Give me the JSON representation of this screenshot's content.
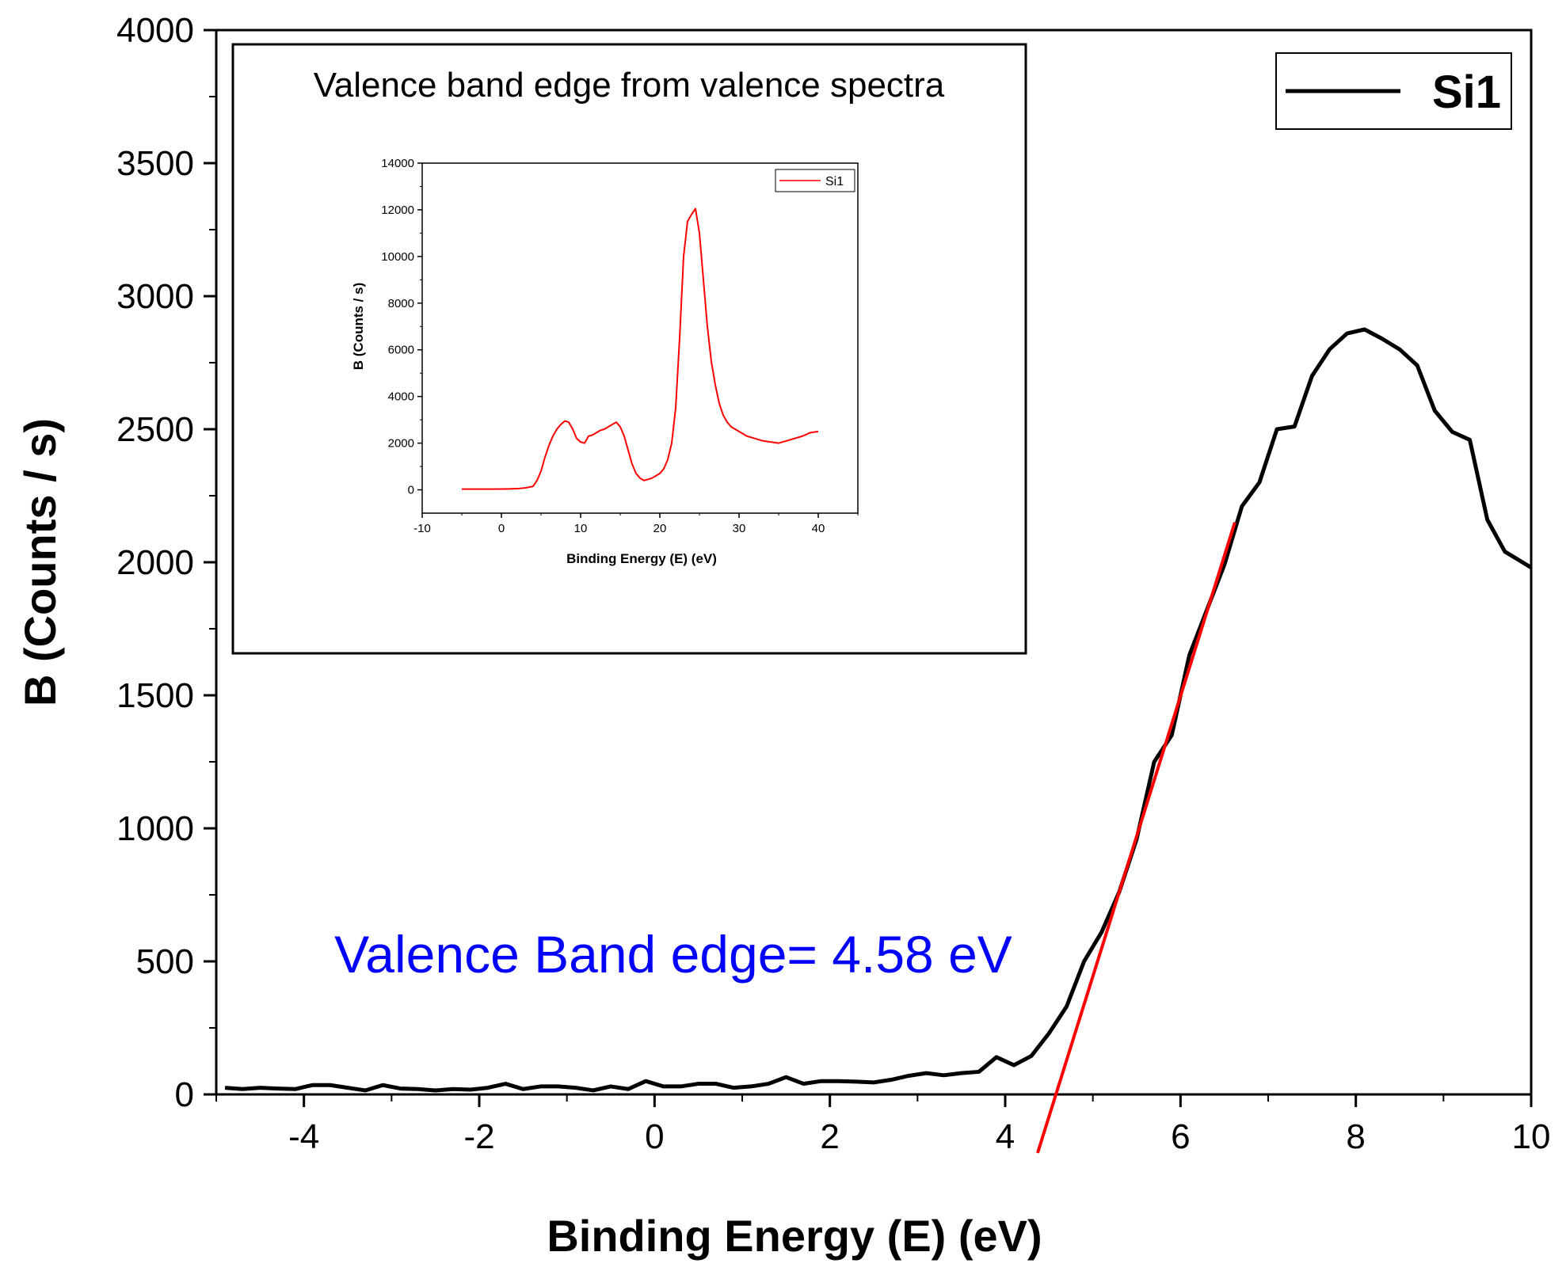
{
  "chart_data": [
    {
      "type": "line",
      "title": "",
      "xlabel": "Binding Energy (E) (eV)",
      "ylabel": "B (Counts / s)",
      "xlim": [
        -5,
        10
      ],
      "ylim": [
        0,
        4000
      ],
      "x_ticks": [
        "-4",
        "-2",
        "0",
        "2",
        "4",
        "6",
        "8",
        "10"
      ],
      "y_ticks": [
        "0",
        "500",
        "1000",
        "1500",
        "2000",
        "2500",
        "3000",
        "3500",
        "4000"
      ],
      "grid": false,
      "legend_position": "top-right",
      "series": [
        {
          "name": "Si1",
          "color": "#000000",
          "x": [
            -4.9,
            -4.7,
            -4.5,
            -4.3,
            -4.1,
            -3.9,
            -3.7,
            -3.5,
            -3.3,
            -3.1,
            -2.9,
            -2.7,
            -2.5,
            -2.3,
            -2.1,
            -1.9,
            -1.7,
            -1.5,
            -1.3,
            -1.1,
            -0.9,
            -0.7,
            -0.5,
            -0.3,
            -0.1,
            0.1,
            0.3,
            0.5,
            0.7,
            0.9,
            1.1,
            1.3,
            1.5,
            1.7,
            1.9,
            2.1,
            2.3,
            2.5,
            2.7,
            2.9,
            3.1,
            3.3,
            3.5,
            3.7,
            3.9,
            4.1,
            4.3,
            4.5,
            4.7,
            4.9,
            5.1,
            5.3,
            5.5,
            5.7,
            5.9,
            6.1,
            6.3,
            6.5,
            6.7,
            6.9,
            7.1,
            7.3,
            7.5,
            7.7,
            7.9,
            8.1,
            8.3,
            8.5,
            8.7,
            8.9,
            9.1,
            9.3,
            9.5,
            9.7,
            9.9,
            10.0
          ],
          "y": [
            25,
            20,
            25,
            22,
            20,
            35,
            35,
            25,
            15,
            35,
            22,
            20,
            15,
            20,
            18,
            25,
            40,
            20,
            30,
            30,
            25,
            15,
            30,
            20,
            50,
            30,
            30,
            40,
            40,
            25,
            30,
            40,
            65,
            40,
            50,
            50,
            48,
            45,
            55,
            70,
            80,
            72,
            80,
            85,
            140,
            110,
            145,
            230,
            330,
            500,
            610,
            760,
            960,
            1250,
            1350,
            1650,
            1820,
            1990,
            2210,
            2300,
            2500,
            2510,
            2700,
            2800,
            2860,
            2875,
            2840,
            2800,
            2740,
            2570,
            2490,
            2460,
            2160,
            2040,
            2000,
            1980
          ]
        },
        {
          "name": "",
          "color": "#ff0000",
          "x": [
            4.37,
            6.62
          ],
          "y": [
            -220,
            2150
          ]
        }
      ],
      "annotations": [
        {
          "text": "Valence Band edge= 4.58 eV",
          "color": "#0000ff"
        }
      ]
    },
    {
      "type": "line",
      "title": "Valence band edge from valence spectra",
      "xlabel": "Binding Energy (E) (eV)",
      "ylabel": "B (Counts / s)",
      "xlim": [
        -10,
        45
      ],
      "ylim": [
        -1000,
        14000
      ],
      "x_ticks": [
        "-10",
        "0",
        "10",
        "20",
        "30",
        "40"
      ],
      "y_ticks": [
        "0",
        "2000",
        "4000",
        "6000",
        "8000",
        "10000",
        "12000",
        "14000"
      ],
      "grid": false,
      "legend_position": "top-right",
      "series": [
        {
          "name": "Si1",
          "color": "#ff0000",
          "x": [
            -5,
            -3,
            -1,
            1,
            2,
            3,
            4,
            4.5,
            5,
            5.5,
            6,
            6.5,
            7,
            7.5,
            8,
            8.5,
            9,
            9.5,
            10,
            10.5,
            11,
            11.5,
            12,
            12.5,
            13,
            13.5,
            14,
            14.5,
            15,
            15.5,
            16,
            16.5,
            17,
            17.5,
            18,
            18.5,
            19,
            19.5,
            20,
            20.5,
            21,
            21.5,
            22,
            22.5,
            23,
            23.5,
            24,
            24.5,
            25,
            25.5,
            26,
            26.5,
            27,
            27.5,
            28,
            28.5,
            29,
            29.5,
            30,
            31,
            32,
            33,
            34,
            35,
            36,
            37,
            38,
            39,
            40
          ],
          "y": [
            30,
            30,
            30,
            40,
            50,
            80,
            150,
            400,
            800,
            1400,
            1900,
            2300,
            2600,
            2800,
            2950,
            2900,
            2600,
            2200,
            2050,
            2000,
            2300,
            2350,
            2450,
            2550,
            2600,
            2700,
            2800,
            2900,
            2700,
            2300,
            1700,
            1100,
            700,
            500,
            400,
            450,
            500,
            600,
            700,
            900,
            1300,
            2000,
            3500,
            6500,
            10000,
            11500,
            11800,
            12050,
            11000,
            9000,
            7000,
            5500,
            4500,
            3700,
            3200,
            2900,
            2700,
            2600,
            2500,
            2300,
            2200,
            2100,
            2050,
            2000,
            2100,
            2200,
            2300,
            2450,
            2500
          ]
        }
      ]
    }
  ]
}
